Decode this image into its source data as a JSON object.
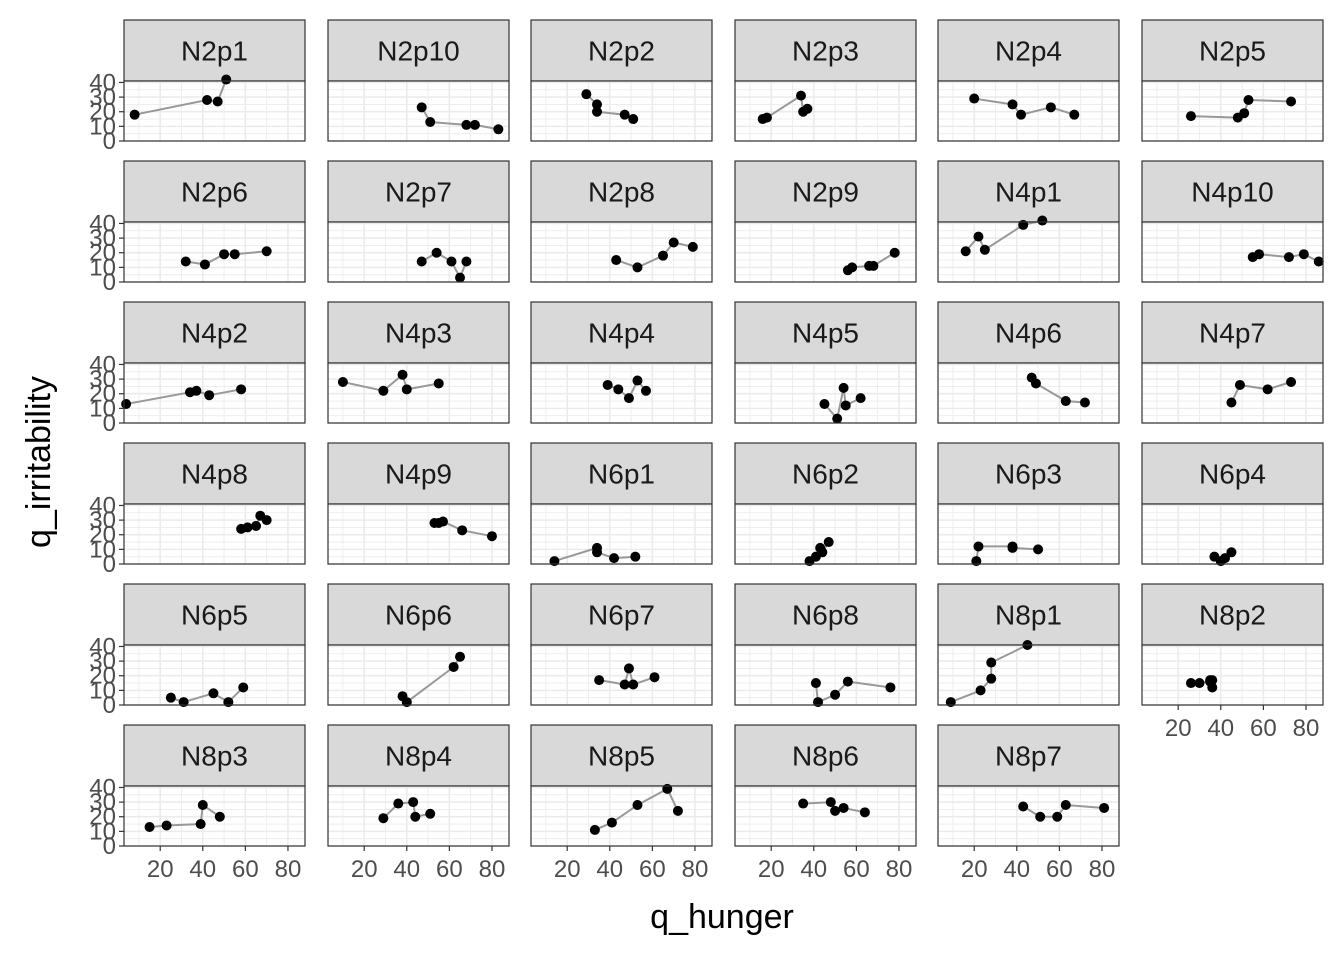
{
  "chart_data": {
    "type": "line",
    "layout": "facet_wrap",
    "xlabel": "q_hunger",
    "ylabel": "q_irritability",
    "xlim": [
      3,
      88
    ],
    "ylim": [
      0,
      41
    ],
    "x_ticks": [
      20,
      40,
      60,
      80
    ],
    "y_ticks": [
      0,
      10,
      20,
      30,
      40
    ],
    "grid": true,
    "colors": {
      "point": "#000000",
      "line": "#999999",
      "strip_fill": "#d9d9d9",
      "panel_border": "#333333",
      "grid": "#ebebeb"
    },
    "panels": [
      {
        "name": "N2p1",
        "x": [
          8,
          42,
          47,
          51
        ],
        "y": [
          18,
          28,
          27,
          42
        ]
      },
      {
        "name": "N2p10",
        "x": [
          47,
          51,
          68,
          72,
          83
        ],
        "y": [
          23,
          13,
          11,
          11,
          8
        ]
      },
      {
        "name": "N2p2",
        "x": [
          29,
          34,
          34,
          47,
          51
        ],
        "y": [
          32,
          25,
          20,
          18,
          15
        ]
      },
      {
        "name": "N2p3",
        "x": [
          16,
          18,
          34,
          35,
          37
        ],
        "y": [
          15,
          16,
          31,
          20,
          22
        ]
      },
      {
        "name": "N2p4",
        "x": [
          20,
          38,
          42,
          56,
          67
        ],
        "y": [
          29,
          25,
          18,
          23,
          18
        ]
      },
      {
        "name": "N2p5",
        "x": [
          26,
          48,
          51,
          53,
          73
        ],
        "y": [
          17,
          16,
          19,
          28,
          27
        ]
      },
      {
        "name": "N2p6",
        "x": [
          32,
          41,
          50,
          55,
          70
        ],
        "y": [
          14,
          12,
          19,
          19,
          21
        ]
      },
      {
        "name": "N2p7",
        "x": [
          47,
          54,
          61,
          65,
          68
        ],
        "y": [
          14,
          20,
          14,
          3,
          14
        ]
      },
      {
        "name": "N2p8",
        "x": [
          43,
          53,
          65,
          70,
          79
        ],
        "y": [
          15,
          10,
          18,
          27,
          24
        ]
      },
      {
        "name": "N2p9",
        "x": [
          56,
          58,
          66,
          68,
          78
        ],
        "y": [
          8,
          10,
          11,
          11,
          20
        ]
      },
      {
        "name": "N4p1",
        "x": [
          16,
          22,
          25,
          43,
          52
        ],
        "y": [
          21,
          31,
          22,
          39,
          42
        ]
      },
      {
        "name": "N4p10",
        "x": [
          55,
          58,
          72,
          79,
          86
        ],
        "y": [
          17,
          19,
          17,
          19,
          14
        ]
      },
      {
        "name": "N4p2",
        "x": [
          4,
          34,
          37,
          43,
          58
        ],
        "y": [
          13,
          21,
          22,
          19,
          23
        ]
      },
      {
        "name": "N4p3",
        "x": [
          10,
          29,
          38,
          40,
          55
        ],
        "y": [
          28,
          22,
          33,
          23,
          27
        ]
      },
      {
        "name": "N4p4",
        "x": [
          39,
          44,
          49,
          53,
          57
        ],
        "y": [
          26,
          23,
          17,
          29,
          22
        ]
      },
      {
        "name": "N4p5",
        "x": [
          45,
          51,
          54,
          55,
          62
        ],
        "y": [
          13,
          3,
          24,
          12,
          17
        ]
      },
      {
        "name": "N4p6",
        "x": [
          47,
          49,
          63,
          72
        ],
        "y": [
          31,
          27,
          15,
          14
        ]
      },
      {
        "name": "N4p7",
        "x": [
          45,
          49,
          62,
          73
        ],
        "y": [
          14,
          26,
          23,
          28
        ]
      },
      {
        "name": "N4p8",
        "x": [
          58,
          61,
          65,
          67,
          70
        ],
        "y": [
          24,
          25,
          26,
          33,
          30
        ]
      },
      {
        "name": "N4p9",
        "x": [
          53,
          55,
          57,
          66,
          80
        ],
        "y": [
          28,
          28,
          29,
          23,
          19
        ]
      },
      {
        "name": "N6p1",
        "x": [
          14,
          34,
          34,
          42,
          52
        ],
        "y": [
          2,
          11,
          8,
          4,
          5
        ]
      },
      {
        "name": "N6p2",
        "x": [
          38,
          41,
          43,
          44,
          47
        ],
        "y": [
          2,
          5,
          11,
          8,
          15
        ]
      },
      {
        "name": "N6p3",
        "x": [
          21,
          22,
          38,
          38,
          50
        ],
        "y": [
          2,
          12,
          12,
          11,
          10
        ]
      },
      {
        "name": "N6p4",
        "x": [
          37,
          40,
          42,
          45
        ],
        "y": [
          5,
          2,
          4,
          8
        ]
      },
      {
        "name": "N6p5",
        "x": [
          25,
          31,
          45,
          52,
          59
        ],
        "y": [
          5,
          2,
          8,
          2,
          12
        ]
      },
      {
        "name": "N6p6",
        "x": [
          38,
          40,
          62,
          65
        ],
        "y": [
          6,
          2,
          26,
          33
        ]
      },
      {
        "name": "N6p7",
        "x": [
          35,
          47,
          49,
          51,
          61
        ],
        "y": [
          17,
          14,
          25,
          14,
          19
        ]
      },
      {
        "name": "N6p8",
        "x": [
          41,
          42,
          50,
          56,
          76
        ],
        "y": [
          15,
          2,
          7,
          16,
          12
        ]
      },
      {
        "name": "N8p1",
        "x": [
          9,
          23,
          28,
          28,
          45
        ],
        "y": [
          2,
          10,
          18,
          29,
          41
        ]
      },
      {
        "name": "N8p2",
        "x": [
          26,
          30,
          35,
          35,
          36,
          36
        ],
        "y": [
          15,
          15,
          16,
          17,
          12,
          17
        ]
      },
      {
        "name": "N8p3",
        "x": [
          15,
          23,
          39,
          40,
          48
        ],
        "y": [
          13,
          14,
          15,
          28,
          20
        ]
      },
      {
        "name": "N8p4",
        "x": [
          29,
          36,
          43,
          44,
          51
        ],
        "y": [
          19,
          29,
          30,
          20,
          22
        ]
      },
      {
        "name": "N8p5",
        "x": [
          33,
          41,
          53,
          67,
          72
        ],
        "y": [
          11,
          16,
          28,
          39,
          24
        ]
      },
      {
        "name": "N8p6",
        "x": [
          35,
          48,
          50,
          54,
          64
        ],
        "y": [
          29,
          30,
          24,
          26,
          23
        ]
      },
      {
        "name": "N8p7",
        "x": [
          43,
          51,
          59,
          63,
          81
        ],
        "y": [
          27,
          20,
          20,
          28,
          26
        ]
      }
    ]
  }
}
